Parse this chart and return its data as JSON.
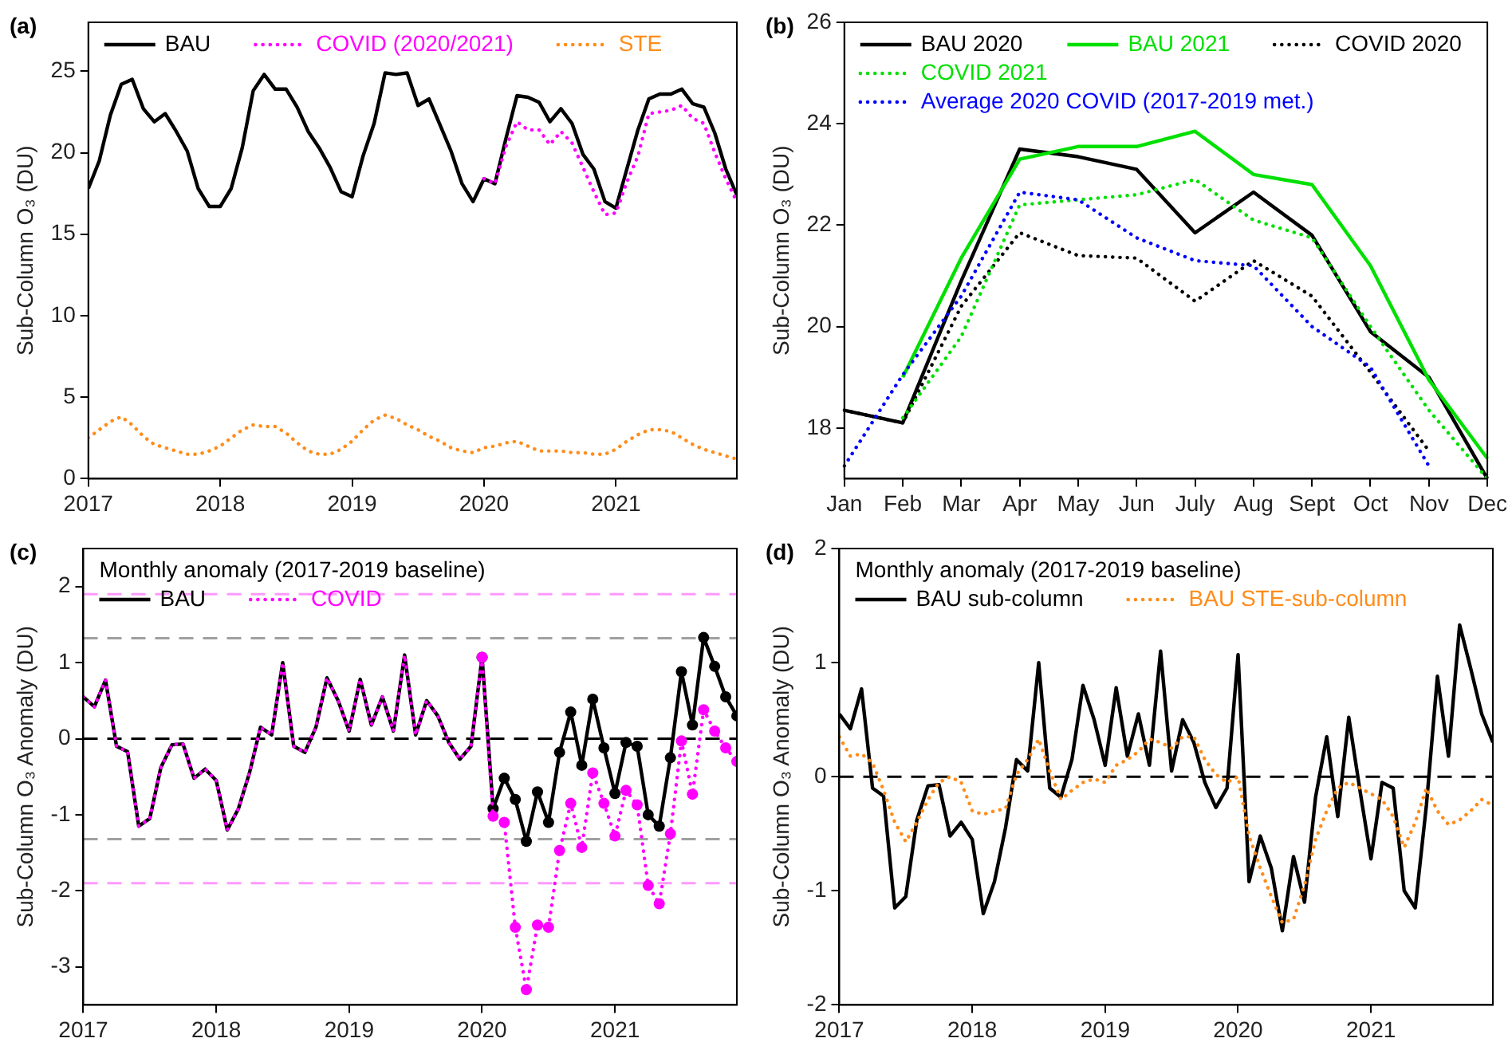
{
  "chart_data": [
    {
      "type": "line",
      "title": "(a)",
      "ylabel": "Sub-Column O₃ (DU)",
      "legend": "top left",
      "grid": false,
      "xlim": [
        2017,
        2021.917
      ],
      "xticks": [
        2017,
        2018,
        2019,
        2020,
        2021
      ],
      "ylim": [
        0,
        28
      ],
      "yticks": [
        0,
        5,
        10,
        15,
        20,
        25
      ],
      "x": [
        2017,
        2017.083,
        2017.167,
        2017.25,
        2017.333,
        2017.417,
        2017.5,
        2017.583,
        2017.667,
        2017.75,
        2017.833,
        2017.917,
        2018,
        2018.083,
        2018.167,
        2018.25,
        2018.333,
        2018.417,
        2018.5,
        2018.583,
        2018.667,
        2018.75,
        2018.833,
        2018.917,
        2019,
        2019.083,
        2019.167,
        2019.25,
        2019.333,
        2019.417,
        2019.5,
        2019.583,
        2019.667,
        2019.75,
        2019.833,
        2019.917,
        2020,
        2020.083,
        2020.167,
        2020.25,
        2020.333,
        2020.417,
        2020.5,
        2020.583,
        2020.667,
        2020.75,
        2020.833,
        2020.917,
        2021,
        2021.083,
        2021.167,
        2021.25,
        2021.333,
        2021.417,
        2021.5,
        2021.583,
        2021.667,
        2021.75,
        2021.833,
        2021.917
      ],
      "series": [
        {
          "name": "BAU",
          "color": "#000000",
          "line_style": "solid",
          "values": [
            17.8,
            19.5,
            22.3,
            24.2,
            24.5,
            22.7,
            21.9,
            22.4,
            21.3,
            20.1,
            17.8,
            16.7,
            16.7,
            17.8,
            20.3,
            23.8,
            24.8,
            23.9,
            23.9,
            22.8,
            21.3,
            20.3,
            19.1,
            17.6,
            17.3,
            19.8,
            21.8,
            24.9,
            24.8,
            24.9,
            22.9,
            23.3,
            21.7,
            20.1,
            18.1,
            17.0,
            18.4,
            18.1,
            20.9,
            23.5,
            23.4,
            23.1,
            21.9,
            22.7,
            21.8,
            19.9,
            19.0,
            17.0,
            16.6,
            19.0,
            21.4,
            23.3,
            23.6,
            23.6,
            23.9,
            23.0,
            22.8,
            21.2,
            19.0,
            17.4
          ]
        },
        {
          "name": "COVID (2020/2021)",
          "color": "#ff00ff",
          "line_style": "dotted",
          "x": [
            2020,
            2020.083,
            2020.167,
            2020.25,
            2020.333,
            2020.417,
            2020.5,
            2020.583,
            2020.667,
            2020.75,
            2020.833,
            2020.917,
            2021,
            2021.083,
            2021.167,
            2021.25,
            2021.333,
            2021.417,
            2021.5,
            2021.583,
            2021.667,
            2021.75,
            2021.833,
            2021.917
          ],
          "values": [
            18.4,
            18.1,
            20.4,
            21.9,
            21.4,
            21.4,
            20.5,
            21.3,
            20.6,
            19.1,
            17.6,
            16.2,
            16.3,
            18.2,
            19.8,
            22.4,
            22.5,
            22.6,
            22.9,
            22.1,
            21.8,
            20.0,
            18.4,
            17.0
          ]
        },
        {
          "name": "STE",
          "color": "#ff8c1a",
          "line_style": "dotted",
          "values": [
            2.5,
            3.0,
            3.5,
            3.8,
            3.3,
            2.6,
            2.1,
            1.9,
            1.7,
            1.5,
            1.5,
            1.7,
            2.0,
            2.5,
            3.0,
            3.3,
            3.2,
            3.2,
            2.8,
            2.2,
            1.7,
            1.5,
            1.5,
            1.8,
            2.3,
            3.0,
            3.6,
            3.9,
            3.7,
            3.3,
            3.0,
            2.6,
            2.3,
            1.9,
            1.7,
            1.6,
            1.9,
            2.0,
            2.2,
            2.3,
            2.0,
            1.7,
            1.7,
            1.7,
            1.6,
            1.6,
            1.5,
            1.5,
            1.8,
            2.3,
            2.7,
            3.0,
            3.0,
            2.9,
            2.5,
            2.1,
            1.8,
            1.6,
            1.4,
            1.2
          ]
        }
      ]
    },
    {
      "type": "line",
      "title": "(b)",
      "ylabel": "Sub-Column O₃ (DU)",
      "legend": "top left",
      "grid": false,
      "categories": [
        "Jan",
        "Feb",
        "Mar",
        "Apr",
        "May",
        "Jun",
        "July",
        "Aug",
        "Sept",
        "Oct",
        "Nov",
        "Dec"
      ],
      "ylim": [
        17,
        26
      ],
      "yticks": [
        18,
        20,
        22,
        24,
        26
      ],
      "series": [
        {
          "name": "BAU 2020",
          "color": "#000000",
          "line_style": "solid",
          "values": [
            18.35,
            18.1,
            20.9,
            23.5,
            23.35,
            23.1,
            21.85,
            22.65,
            21.8,
            19.9,
            19.0,
            17.0
          ]
        },
        {
          "name": "BAU 2021",
          "color": "#00e000",
          "line_style": "solid",
          "values": [
            null,
            19.0,
            21.35,
            23.3,
            23.55,
            23.55,
            23.85,
            23.0,
            22.8,
            21.2,
            18.95,
            17.4
          ]
        },
        {
          "name": "COVID 2020",
          "color": "#000000",
          "line_style": "dotted",
          "values": [
            18.35,
            18.1,
            20.4,
            21.85,
            21.4,
            21.35,
            20.5,
            21.3,
            20.6,
            19.1,
            17.55,
            null
          ]
        },
        {
          "name": "COVID 2021",
          "color": "#00e000",
          "line_style": "dotted",
          "values": [
            null,
            18.2,
            19.8,
            22.4,
            22.5,
            22.6,
            22.9,
            22.1,
            21.75,
            20.0,
            18.35,
            17.0
          ]
        },
        {
          "name": "Average 2020 COVID (2017-2019 met.)",
          "color": "#0000ff",
          "line_style": "dotted",
          "values": [
            17.25,
            19.05,
            20.6,
            22.65,
            22.5,
            21.75,
            21.3,
            21.2,
            20.0,
            19.2,
            17.25,
            null
          ]
        }
      ]
    },
    {
      "type": "line",
      "title": "(c)",
      "ylabel": "Sub-Column O₃ Anomaly (DU)",
      "legend_title": "Monthly anomaly (2017-2019 baseline)",
      "legend": "top left",
      "grid": false,
      "xlim": [
        2017,
        2021.917
      ],
      "xticks": [
        2017,
        2018,
        2019,
        2020,
        2021
      ],
      "ylim": [
        -3.5,
        2.5
      ],
      "yticks": [
        -3,
        -2,
        -1,
        0,
        1,
        2
      ],
      "ref_lines": [
        {
          "axis": "y",
          "value": 1.9,
          "color": "#ff99ff",
          "line_style": "dashed"
        },
        {
          "axis": "y",
          "value": 1.32,
          "color": "#a0a0a0",
          "line_style": "dashed"
        },
        {
          "axis": "y",
          "value": 0,
          "color": "#000000",
          "line_style": "dashed"
        },
        {
          "axis": "y",
          "value": -1.32,
          "color": "#a0a0a0",
          "line_style": "dashed"
        },
        {
          "axis": "y",
          "value": -1.9,
          "color": "#ff99ff",
          "line_style": "dashed"
        }
      ],
      "series": [
        {
          "name": "BAU",
          "color": "#000000",
          "line_style": "solid",
          "marker": "none",
          "x": [
            2017,
            2017.083,
            2017.167,
            2017.25,
            2017.333,
            2017.417,
            2017.5,
            2017.583,
            2017.667,
            2017.75,
            2017.833,
            2017.917,
            2018,
            2018.083,
            2018.167,
            2018.25,
            2018.333,
            2018.417,
            2018.5,
            2018.583,
            2018.667,
            2018.75,
            2018.833,
            2018.917,
            2019,
            2019.083,
            2019.167,
            2019.25,
            2019.333,
            2019.417,
            2019.5,
            2019.583,
            2019.667,
            2019.75,
            2019.833,
            2019.917,
            2020
          ],
          "values": [
            0.55,
            0.42,
            0.77,
            -0.1,
            -0.17,
            -1.15,
            -1.05,
            -0.38,
            -0.08,
            -0.07,
            -0.52,
            -0.4,
            -0.55,
            -1.2,
            -0.92,
            -0.45,
            0.15,
            0.05,
            1.0,
            -0.1,
            -0.18,
            0.15,
            0.8,
            0.5,
            0.1,
            0.78,
            0.18,
            0.55,
            0.1,
            1.1,
            0.05,
            0.5,
            0.3,
            -0.05,
            -0.27,
            -0.1,
            1.07
          ]
        },
        {
          "color": "#000000",
          "line_style": "solid",
          "marker": "circle",
          "x": [
            2020,
            2020.083,
            2020.167,
            2020.25,
            2020.333,
            2020.417,
            2020.5,
            2020.583,
            2020.667,
            2020.75,
            2020.833,
            2020.917,
            2021,
            2021.083,
            2021.167,
            2021.25,
            2021.333,
            2021.417,
            2021.5,
            2021.583,
            2021.667,
            2021.75,
            2021.833,
            2021.917
          ],
          "values": [
            1.07,
            -0.92,
            -0.52,
            -0.8,
            -1.35,
            -0.7,
            -1.1,
            -0.18,
            0.35,
            -0.35,
            0.52,
            -0.12,
            -0.72,
            -0.05,
            -0.1,
            -1.0,
            -1.15,
            -0.25,
            0.88,
            0.18,
            1.33,
            0.95,
            0.55,
            0.3
          ]
        },
        {
          "name": "COVID",
          "color": "#ff00ff",
          "line_style": "dotted",
          "marker": "none",
          "x": [
            2017,
            2017.083,
            2017.167,
            2017.25,
            2017.333,
            2017.417,
            2017.5,
            2017.583,
            2017.667,
            2017.75,
            2017.833,
            2017.917,
            2018,
            2018.083,
            2018.167,
            2018.25,
            2018.333,
            2018.417,
            2018.5,
            2018.583,
            2018.667,
            2018.75,
            2018.833,
            2018.917,
            2019,
            2019.083,
            2019.167,
            2019.25,
            2019.333,
            2019.417,
            2019.5,
            2019.583,
            2019.667,
            2019.75,
            2019.833,
            2019.917,
            2020
          ],
          "values": [
            0.55,
            0.42,
            0.77,
            -0.1,
            -0.17,
            -1.15,
            -1.05,
            -0.38,
            -0.08,
            -0.07,
            -0.52,
            -0.4,
            -0.55,
            -1.2,
            -0.92,
            -0.45,
            0.15,
            0.05,
            1.0,
            -0.1,
            -0.18,
            0.15,
            0.8,
            0.5,
            0.1,
            0.78,
            0.18,
            0.55,
            0.1,
            1.1,
            0.05,
            0.5,
            0.3,
            -0.05,
            -0.27,
            -0.1,
            1.07
          ]
        },
        {
          "color": "#ff00ff",
          "line_style": "dotted",
          "marker": "circle",
          "x": [
            2020,
            2020.083,
            2020.167,
            2020.25,
            2020.333,
            2020.417,
            2020.5,
            2020.583,
            2020.667,
            2020.75,
            2020.833,
            2020.917,
            2021,
            2021.083,
            2021.167,
            2021.25,
            2021.333,
            2021.417,
            2021.5,
            2021.583,
            2021.667,
            2021.75,
            2021.833,
            2021.917
          ],
          "values": [
            1.07,
            -1.02,
            -1.1,
            -2.48,
            -3.3,
            -2.45,
            -2.48,
            -1.47,
            -0.85,
            -1.43,
            -0.45,
            -0.85,
            -1.28,
            -0.68,
            -0.87,
            -1.93,
            -2.17,
            -1.25,
            -0.03,
            -0.73,
            0.38,
            0.1,
            -0.12,
            -0.3
          ]
        }
      ]
    },
    {
      "type": "line",
      "title": "(d)",
      "ylabel": "Sub-Column O₃ Anomaly (DU)",
      "legend_title": "Monthly anomaly (2017-2019 baseline)",
      "legend": "top left",
      "grid": false,
      "xlim": [
        2017,
        2021.917
      ],
      "xticks": [
        2017,
        2018,
        2019,
        2020,
        2021
      ],
      "ylim": [
        -2,
        2
      ],
      "yticks": [
        -2,
        -1,
        0,
        1,
        2
      ],
      "ref_lines": [
        {
          "axis": "y",
          "value": 0,
          "color": "#000000",
          "line_style": "dashed"
        }
      ],
      "x": [
        2017,
        2017.083,
        2017.167,
        2017.25,
        2017.333,
        2017.417,
        2017.5,
        2017.583,
        2017.667,
        2017.75,
        2017.833,
        2017.917,
        2018,
        2018.083,
        2018.167,
        2018.25,
        2018.333,
        2018.417,
        2018.5,
        2018.583,
        2018.667,
        2018.75,
        2018.833,
        2018.917,
        2019,
        2019.083,
        2019.167,
        2019.25,
        2019.333,
        2019.417,
        2019.5,
        2019.583,
        2019.667,
        2019.75,
        2019.833,
        2019.917,
        2020,
        2020.083,
        2020.167,
        2020.25,
        2020.333,
        2020.417,
        2020.5,
        2020.583,
        2020.667,
        2020.75,
        2020.833,
        2020.917,
        2021,
        2021.083,
        2021.167,
        2021.25,
        2021.333,
        2021.417,
        2021.5,
        2021.583,
        2021.667,
        2021.75,
        2021.833,
        2021.917
      ],
      "series": [
        {
          "name": "BAU sub-column",
          "color": "#000000",
          "line_style": "solid",
          "values": [
            0.55,
            0.42,
            0.77,
            -0.1,
            -0.17,
            -1.15,
            -1.05,
            -0.38,
            -0.08,
            -0.07,
            -0.52,
            -0.4,
            -0.55,
            -1.2,
            -0.92,
            -0.45,
            0.15,
            0.05,
            1.0,
            -0.1,
            -0.18,
            0.15,
            0.8,
            0.5,
            0.1,
            0.78,
            0.18,
            0.55,
            0.1,
            1.1,
            0.05,
            0.5,
            0.3,
            -0.05,
            -0.27,
            -0.1,
            1.07,
            -0.92,
            -0.52,
            -0.8,
            -1.35,
            -0.7,
            -1.1,
            -0.18,
            0.35,
            -0.35,
            0.52,
            -0.12,
            -0.72,
            -0.05,
            -0.1,
            -1.0,
            -1.15,
            -0.25,
            0.88,
            0.18,
            1.33,
            0.95,
            0.55,
            0.3
          ]
        },
        {
          "name": "BAU STE-sub-column",
          "color": "#ff8c1a",
          "line_style": "dotted",
          "values": [
            0.35,
            0.18,
            0.2,
            0.12,
            -0.12,
            -0.4,
            -0.57,
            -0.4,
            -0.2,
            -0.05,
            0.0,
            -0.05,
            -0.3,
            -0.33,
            -0.3,
            -0.28,
            0.02,
            0.15,
            0.33,
            0.05,
            -0.2,
            -0.12,
            -0.05,
            -0.02,
            -0.05,
            0.1,
            0.15,
            0.22,
            0.33,
            0.3,
            0.25,
            0.35,
            0.35,
            0.15,
            0.02,
            -0.05,
            0.0,
            -0.52,
            -0.8,
            -1.05,
            -1.28,
            -1.25,
            -0.95,
            -0.55,
            -0.3,
            -0.1,
            -0.05,
            -0.1,
            -0.15,
            -0.2,
            -0.35,
            -0.62,
            -0.4,
            -0.1,
            -0.3,
            -0.42,
            -0.38,
            -0.3,
            -0.2,
            -0.25
          ]
        }
      ]
    }
  ]
}
